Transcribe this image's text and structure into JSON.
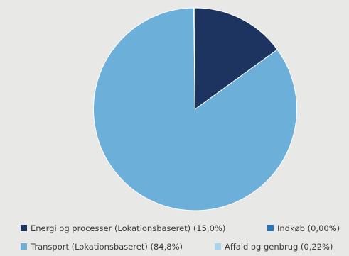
{
  "chart_data": {
    "type": "pie",
    "start_angle_deg": 0,
    "direction": "clockwise",
    "slices": [
      {
        "label": "Energi og processer (Lokationsbaseret)",
        "pct_label": "(15,0%)",
        "value": 15.0,
        "color": "#1d3461"
      },
      {
        "label": "Indkøb",
        "pct_label": "(0,00%)",
        "value": 0.0,
        "color": "#2b74b8"
      },
      {
        "label": "Transport (Lokationsbaseret)",
        "pct_label": "(84,8%)",
        "value": 84.8,
        "color": "#6cafd9"
      },
      {
        "label": "Affald og genbrug",
        "pct_label": "(0,22%)",
        "value": 0.22,
        "color": "#a9d4ee"
      }
    ],
    "legend_position": "bottom"
  },
  "colors": {
    "background": "#e8e8e6",
    "slice_border": "#ffffff",
    "legend_text": "#3a3a3a"
  }
}
